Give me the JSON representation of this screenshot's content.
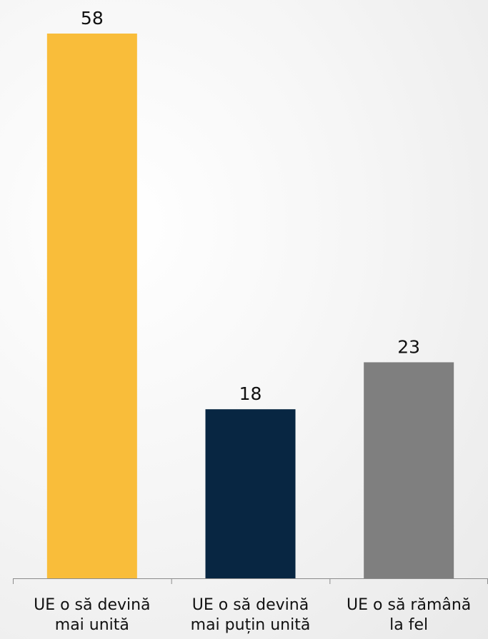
{
  "chart_data": {
    "type": "bar",
    "title": "",
    "xlabel": "",
    "ylabel": "",
    "categories": [
      [
        "UE o să devină",
        "mai unită"
      ],
      [
        "UE o să devină",
        "mai puțin unită"
      ],
      [
        "UE o să rămână",
        "la fel"
      ]
    ],
    "values": [
      58,
      18,
      23
    ],
    "colors": [
      "#F9BD3A",
      "#082642",
      "#7F7F7F"
    ],
    "ylim": [
      0,
      58
    ],
    "grid": false,
    "legend": "none",
    "data_labels": true
  }
}
